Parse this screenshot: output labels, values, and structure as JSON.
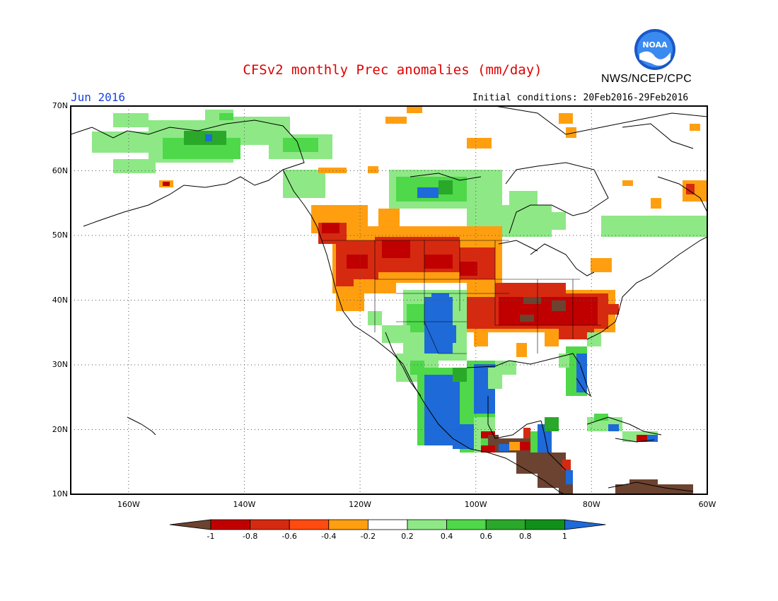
{
  "header": {
    "title": "CFSv2 monthly Prec anomalies (mm/day)",
    "month": "Jun 2016",
    "initial_conditions": "Initial conditions: 20Feb2016-29Feb2016",
    "agency": "NWS/NCEP/CPC",
    "logo_text": "NOAA"
  },
  "map": {
    "projection": "equirectangular",
    "lon_range": [
      -170,
      -60
    ],
    "lat_range": [
      10,
      70
    ],
    "y_axis_labels": [
      "70N",
      "60N",
      "50N",
      "40N",
      "30N",
      "20N",
      "10N"
    ],
    "x_axis_labels": [
      "160W",
      "140W",
      "120W",
      "100W",
      "80W",
      "60W"
    ],
    "grid": "dotted"
  },
  "colorbar": {
    "labels": [
      "-1",
      "-0.8",
      "-0.6",
      "-0.4",
      "-0.2",
      "0.2",
      "0.4",
      "0.6",
      "0.8",
      "1"
    ],
    "colors": [
      "#6b4330",
      "#c00000",
      "#d62a10",
      "#ff4a10",
      "#ff9f10",
      "#ffffff",
      "#8ee886",
      "#4ed84a",
      "#2aa82a",
      "#10901a",
      "#1e6ad8"
    ]
  },
  "chart_data": {
    "type": "heatmap",
    "title": "CFSv2 monthly Prec anomalies (mm/day)",
    "valid_month": "Jun 2016",
    "units": "mm/day",
    "xlim": [
      -170,
      -60
    ],
    "ylim": [
      10,
      70
    ],
    "levels": [
      -1,
      -0.8,
      -0.6,
      -0.4,
      -0.2,
      0.2,
      0.4,
      0.6,
      0.8,
      1
    ],
    "regions": [
      {
        "lon": [
          -125,
          -117
        ],
        "lat": [
          40,
          50
        ],
        "value": -0.7
      },
      {
        "lon": [
          -116,
          -100
        ],
        "lat": [
          41,
          48
        ],
        "value": -0.7
      },
      {
        "lon": [
          -122,
          -110
        ],
        "lat": [
          37,
          42
        ],
        "value": -0.4
      },
      {
        "lon": [
          -97,
          -80
        ],
        "lat": [
          36,
          41
        ],
        "value": -0.8
      },
      {
        "lon": [
          -92,
          -84
        ],
        "lat": [
          37,
          40
        ],
        "value": -1.1
      },
      {
        "lon": [
          -112,
          -104
        ],
        "lat": [
          30,
          39
        ],
        "value": 1.0
      },
      {
        "lon": [
          -110,
          -101
        ],
        "lat": [
          18,
          28
        ],
        "value": 0.9
      },
      {
        "lon": [
          -97,
          -90
        ],
        "lat": [
          15,
          21
        ],
        "value": -1.0
      },
      {
        "lon": [
          -92,
          -83
        ],
        "lat": [
          11,
          16
        ],
        "value": -1.1
      },
      {
        "lon": [
          -117,
          -97
        ],
        "lat": [
          55,
          60
        ],
        "value": 0.5
      },
      {
        "lon": [
          -166,
          -140
        ],
        "lat": [
          62,
          68
        ],
        "value": 0.5
      },
      {
        "lon": [
          -83,
          -80
        ],
        "lat": [
          25,
          30
        ],
        "value": 0.9
      },
      {
        "lon": [
          -75,
          -62
        ],
        "lat": [
          10,
          12
        ],
        "value": -1.1
      }
    ]
  }
}
